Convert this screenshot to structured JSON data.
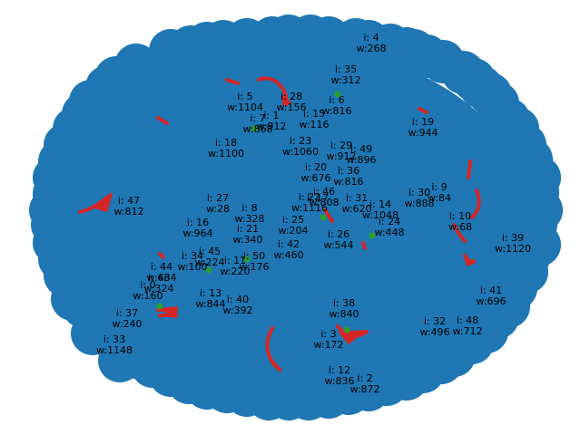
{
  "graph": {
    "colors": {
      "node": "#1f77b4",
      "edge": "#d62728",
      "highlight": "#2ca02c"
    },
    "nodes": [
      {
        "i": "0",
        "w": "160"
      },
      {
        "i": "1",
        "w": "912"
      },
      {
        "i": "2",
        "w": "872"
      },
      {
        "i": "3",
        "w": "172"
      },
      {
        "i": "4",
        "w": "268"
      },
      {
        "i": "5",
        "w": "1104"
      },
      {
        "i": "6",
        "w": "816"
      },
      {
        "i": "7",
        "w": "868"
      },
      {
        "i": "8",
        "w": "328"
      },
      {
        "i": "9",
        "w": "84"
      },
      {
        "i": "10",
        "w": "68"
      },
      {
        "i": "11",
        "w": "220"
      },
      {
        "i": "12",
        "w": "836"
      },
      {
        "i": "13",
        "w": "844"
      },
      {
        "i": "14",
        "w": "1048"
      },
      {
        "i": "15",
        "w": "116"
      },
      {
        "i": "16",
        "w": "964"
      },
      {
        "i": "17",
        "w": ""
      },
      {
        "i": "18",
        "w": "1100"
      },
      {
        "i": "19",
        "w": "944"
      },
      {
        "i": "20",
        "w": "676"
      },
      {
        "i": "21",
        "w": "340"
      },
      {
        "i": "22",
        "w": "1116"
      },
      {
        "i": "23",
        "w": "1060"
      },
      {
        "i": "24",
        "w": "448"
      },
      {
        "i": "25",
        "w": "204"
      },
      {
        "i": "26",
        "w": "544"
      },
      {
        "i": "27",
        "w": "28"
      },
      {
        "i": "28",
        "w": "156"
      },
      {
        "i": "29",
        "w": "912"
      },
      {
        "i": "30",
        "w": "888"
      },
      {
        "i": "31",
        "w": "620"
      },
      {
        "i": "32",
        "w": "496"
      },
      {
        "i": "33",
        "w": "1148"
      },
      {
        "i": "34",
        "w": "100"
      },
      {
        "i": "35",
        "w": "312"
      },
      {
        "i": "36",
        "w": "816"
      },
      {
        "i": "37",
        "w": "240"
      },
      {
        "i": "38",
        "w": "840"
      },
      {
        "i": "39",
        "w": "1120"
      },
      {
        "i": "40",
        "w": "392"
      },
      {
        "i": "41",
        "w": "696"
      },
      {
        "i": "42",
        "w": "460"
      },
      {
        "i": "43",
        "w": "324"
      },
      {
        "i": "44",
        "w": "684"
      },
      {
        "i": "45",
        "w": "224"
      },
      {
        "i": "46",
        "w": "808"
      },
      {
        "i": "47",
        "w": "812"
      },
      {
        "i": "48",
        "w": "712"
      },
      {
        "i": "49",
        "w": "896"
      },
      {
        "i": "50",
        "w": "176"
      }
    ]
  }
}
